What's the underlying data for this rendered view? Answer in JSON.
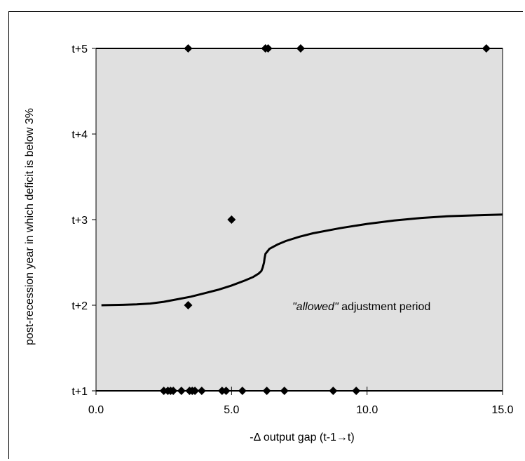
{
  "chart_data": {
    "type": "scatter",
    "title": "",
    "xlabel": "-Δ output gap (t-1→t)",
    "ylabel": "post-recession year in which deficit is  below 3%",
    "xlim": [
      0,
      15
    ],
    "ylim": [
      1,
      5
    ],
    "x_ticks": [
      "0.0",
      "5.0",
      "10.0",
      "15.0"
    ],
    "x_tick_values": [
      0,
      5,
      10,
      15
    ],
    "y_ticks": [
      "t+1",
      "t+2",
      "t+3",
      "t+4",
      "t+5"
    ],
    "y_tick_values": [
      1,
      2,
      3,
      4,
      5
    ],
    "grid": false,
    "plot_background": "#e0e0e0",
    "marker_color": "#000000",
    "marker": "diamond",
    "series": [
      {
        "points": [
          {
            "x": 2.5,
            "y": 1
          },
          {
            "x": 2.65,
            "y": 1
          },
          {
            "x": 2.75,
            "y": 1
          },
          {
            "x": 2.85,
            "y": 1
          },
          {
            "x": 3.15,
            "y": 1
          },
          {
            "x": 3.45,
            "y": 1
          },
          {
            "x": 3.55,
            "y": 1
          },
          {
            "x": 3.65,
            "y": 1
          },
          {
            "x": 3.9,
            "y": 1
          },
          {
            "x": 4.65,
            "y": 1
          },
          {
            "x": 4.8,
            "y": 1
          },
          {
            "x": 5.4,
            "y": 1
          },
          {
            "x": 6.3,
            "y": 1
          },
          {
            "x": 6.95,
            "y": 1
          },
          {
            "x": 8.75,
            "y": 1
          },
          {
            "x": 9.6,
            "y": 1
          },
          {
            "x": 3.4,
            "y": 2
          },
          {
            "x": 5.0,
            "y": 3
          },
          {
            "x": 3.4,
            "y": 5
          },
          {
            "x": 6.25,
            "y": 5
          },
          {
            "x": 6.35,
            "y": 5
          },
          {
            "x": 7.55,
            "y": 5
          },
          {
            "x": 14.4,
            "y": 5
          }
        ]
      }
    ],
    "curve": {
      "label_italic": "\"allowed\"",
      "label_rest": " adjustment period",
      "points": [
        [
          0.2,
          2.0
        ],
        [
          1.0,
          2.005
        ],
        [
          1.5,
          2.01
        ],
        [
          2.0,
          2.02
        ],
        [
          2.5,
          2.04
        ],
        [
          3.0,
          2.07
        ],
        [
          3.5,
          2.1
        ],
        [
          4.0,
          2.14
        ],
        [
          4.5,
          2.18
        ],
        [
          5.0,
          2.23
        ],
        [
          5.5,
          2.29
        ],
        [
          5.8,
          2.33
        ],
        [
          6.0,
          2.37
        ],
        [
          6.1,
          2.4
        ],
        [
          6.15,
          2.44
        ],
        [
          6.2,
          2.5
        ],
        [
          6.22,
          2.55
        ],
        [
          6.25,
          2.6
        ],
        [
          6.4,
          2.66
        ],
        [
          6.7,
          2.71
        ],
        [
          7.0,
          2.75
        ],
        [
          7.5,
          2.8
        ],
        [
          8.0,
          2.84
        ],
        [
          9.0,
          2.9
        ],
        [
          10.0,
          2.95
        ],
        [
          11.0,
          2.99
        ],
        [
          12.0,
          3.02
        ],
        [
          13.0,
          3.04
        ],
        [
          14.0,
          3.05
        ],
        [
          15.0,
          3.06
        ]
      ]
    }
  }
}
